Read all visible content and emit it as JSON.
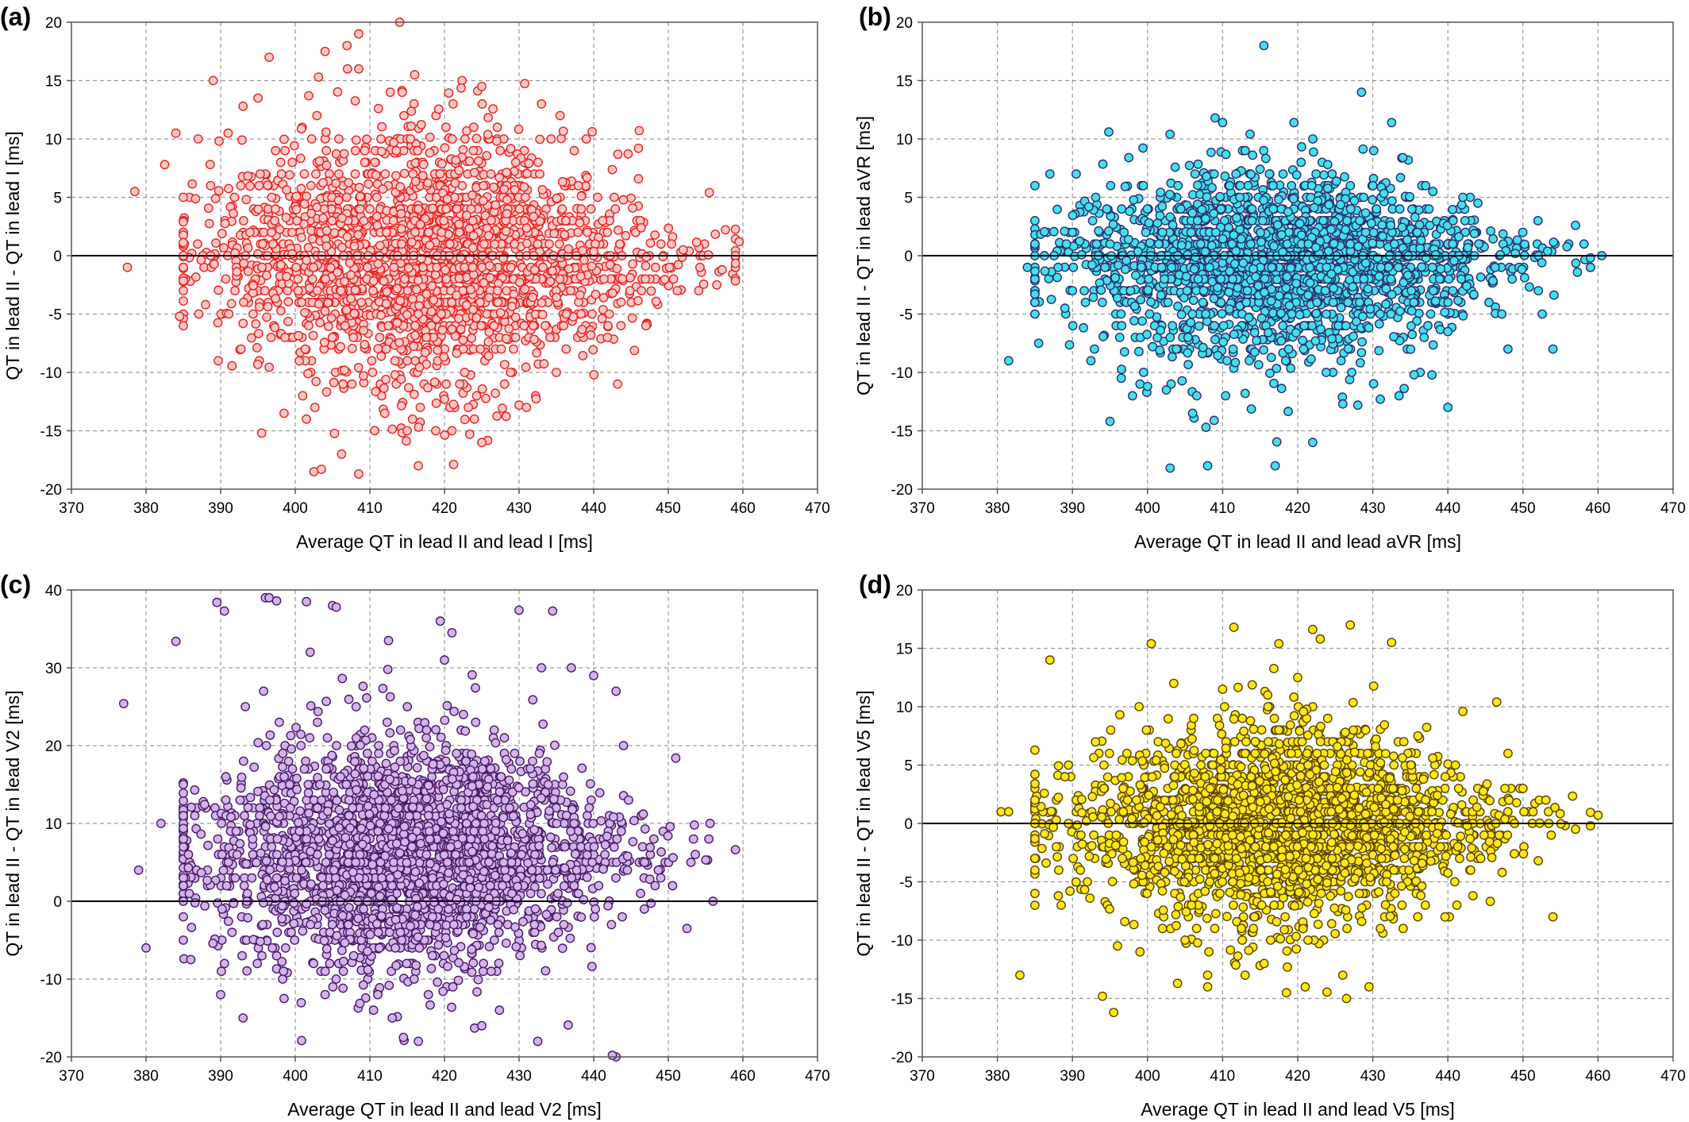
{
  "chart_data": [
    {
      "type": "scatter",
      "panel_label": "(a)",
      "title": "",
      "xlabel": "Average QT in lead II and lead I [ms]",
      "ylabel": "QT in lead II - QT in lead I [ms]",
      "xlim": [
        370,
        470
      ],
      "ylim": [
        -20,
        20
      ],
      "x_ticks": [
        370,
        380,
        390,
        400,
        410,
        420,
        430,
        440,
        450,
        460,
        470
      ],
      "y_ticks": [
        -20,
        -15,
        -10,
        -5,
        0,
        5,
        10,
        15,
        20
      ],
      "grid": true,
      "reference_line_y": 0,
      "marker_fill": "#f9c8c8",
      "marker_edge": "#e8231e",
      "distribution": {
        "n_points": 2200,
        "x_center": 418,
        "x_spread": 15,
        "y_spread_max": 5.8
      },
      "points": [
        [
          377.5,
          -1
        ],
        [
          378.5,
          5.5
        ],
        [
          384,
          10.5
        ],
        [
          389,
          15
        ],
        [
          393,
          12.8
        ],
        [
          395,
          13.5
        ],
        [
          396.5,
          17
        ],
        [
          404,
          17.5
        ],
        [
          407,
          16
        ],
        [
          408.5,
          19
        ],
        [
          414,
          20
        ],
        [
          416,
          15.5
        ],
        [
          425,
          14.5
        ],
        [
          433,
          13
        ],
        [
          435.5,
          12
        ],
        [
          439,
          10
        ],
        [
          446,
          9.2
        ],
        [
          455.5,
          5.4
        ],
        [
          459.5,
          1.2
        ],
        [
          395.5,
          -15.2
        ],
        [
          401.5,
          -14
        ],
        [
          402.5,
          -18.5
        ],
        [
          403.5,
          -18.3
        ],
        [
          408.5,
          -18.7
        ],
        [
          416.5,
          -18
        ],
        [
          421,
          -15
        ],
        [
          425,
          -16
        ],
        [
          430,
          -12.8
        ],
        [
          431,
          -13
        ],
        [
          435,
          -10
        ],
        [
          382.5,
          7.8
        ],
        [
          384.5,
          -5.2
        ],
        [
          398.5,
          -13.5
        ],
        [
          401,
          -12
        ],
        [
          412,
          -13.5
        ],
        [
          415,
          -15
        ],
        [
          420,
          -12.3
        ],
        [
          387,
          10
        ],
        [
          391,
          10.5
        ],
        [
          452,
          0.5
        ],
        [
          456.5,
          -2.5
        ],
        [
          447,
          -6
        ]
      ]
    },
    {
      "type": "scatter",
      "panel_label": "(b)",
      "title": "",
      "xlabel": "Average QT in lead II and lead aVR [ms]",
      "ylabel": "QT in lead II - QT in lead aVR [ms]",
      "xlim": [
        370,
        470
      ],
      "ylim": [
        -20,
        20
      ],
      "x_ticks": [
        370,
        380,
        390,
        400,
        410,
        420,
        430,
        440,
        450,
        460,
        470
      ],
      "y_ticks": [
        -20,
        -15,
        -10,
        -5,
        0,
        5,
        10,
        15,
        20
      ],
      "grid": true,
      "reference_line_y": 0,
      "marker_fill": "#43e0ec",
      "marker_edge": "#2a2e6e",
      "distribution": {
        "n_points": 2200,
        "x_center": 418,
        "x_spread": 14,
        "y_spread_max": 3.6
      },
      "points": [
        [
          381.5,
          -9
        ],
        [
          385,
          -5
        ],
        [
          385.5,
          -7.5
        ],
        [
          387,
          7
        ],
        [
          390.5,
          7
        ],
        [
          395,
          -14.2
        ],
        [
          397.5,
          8.4
        ],
        [
          403,
          10.4
        ],
        [
          403,
          -18.2
        ],
        [
          408,
          -18
        ],
        [
          409,
          11.8
        ],
        [
          410,
          11.4
        ],
        [
          415.5,
          18
        ],
        [
          417,
          -18
        ],
        [
          419.5,
          11.4
        ],
        [
          422,
          -16
        ],
        [
          428.5,
          14
        ],
        [
          432.5,
          11.4
        ],
        [
          434,
          8.4
        ],
        [
          438,
          5.5
        ],
        [
          442,
          5
        ],
        [
          448,
          -8
        ],
        [
          454,
          -8
        ],
        [
          457,
          2.6
        ],
        [
          460.5,
          0
        ],
        [
          399,
          -11
        ],
        [
          400,
          -11.2
        ],
        [
          402.5,
          -11.5
        ],
        [
          406,
          -13.5
        ],
        [
          413,
          -11.8
        ],
        [
          426,
          -12.7
        ],
        [
          428,
          -12.8
        ],
        [
          431,
          -12.3
        ],
        [
          435.5,
          -10.2
        ],
        [
          440,
          -6.5
        ],
        [
          424,
          7.8
        ],
        [
          413,
          9
        ],
        [
          396.5,
          -10.5
        ],
        [
          389,
          -4.5
        ],
        [
          384,
          -1
        ],
        [
          444,
          4.5
        ],
        [
          452,
          3
        ]
      ]
    },
    {
      "type": "scatter",
      "panel_label": "(c)",
      "title": "",
      "xlabel": "Average QT in lead II and lead V2 [ms]",
      "ylabel": "QT in lead II - QT in lead V2 [ms]",
      "xlim": [
        370,
        470
      ],
      "ylim": [
        -20,
        40
      ],
      "x_ticks": [
        370,
        380,
        390,
        400,
        410,
        420,
        430,
        440,
        450,
        460,
        470
      ],
      "y_ticks": [
        -20,
        -10,
        0,
        10,
        20,
        30,
        40
      ],
      "grid": true,
      "reference_line_y": 0,
      "marker_fill": "#d4b3ec",
      "marker_edge": "#4a1a66",
      "distribution": {
        "n_points": 2500,
        "x_center": 415,
        "x_spread": 14,
        "y_center": 6,
        "y_spread_max": 8
      },
      "points": [
        [
          377,
          25.4
        ],
        [
          379,
          4
        ],
        [
          380,
          -6
        ],
        [
          382,
          10
        ],
        [
          384,
          33.4
        ],
        [
          389.5,
          38.4
        ],
        [
          390.5,
          37.3
        ],
        [
          396,
          39
        ],
        [
          396.5,
          39
        ],
        [
          397.5,
          38.6
        ],
        [
          401.5,
          38.5
        ],
        [
          405,
          38
        ],
        [
          405.5,
          37.8
        ],
        [
          412.5,
          33.5
        ],
        [
          421,
          34.5
        ],
        [
          430,
          37.4
        ],
        [
          434.5,
          37.3
        ],
        [
          443,
          27
        ],
        [
          444,
          20
        ],
        [
          451,
          18.4
        ],
        [
          453.5,
          9.8
        ],
        [
          452.5,
          -3.5
        ],
        [
          456,
          0
        ],
        [
          443,
          -20
        ],
        [
          442.5,
          -19.8
        ],
        [
          432.5,
          -18
        ],
        [
          425,
          -16
        ],
        [
          416.5,
          -18
        ],
        [
          414.5,
          -17.5
        ],
        [
          413,
          -15
        ],
        [
          410.5,
          -14
        ],
        [
          404,
          -12
        ],
        [
          398.5,
          -12.5
        ],
        [
          393,
          -15
        ],
        [
          390,
          -12
        ],
        [
          386,
          -7.5
        ],
        [
          385,
          2
        ],
        [
          440,
          29
        ],
        [
          437,
          30
        ],
        [
          433,
          30
        ],
        [
          420,
          31
        ],
        [
          402,
          32
        ]
      ]
    },
    {
      "type": "scatter",
      "panel_label": "(d)",
      "title": "",
      "xlabel": "Average QT in lead II and lead V5 [ms]",
      "ylabel": "QT in lead II - QT in lead V5 [ms]",
      "xlim": [
        370,
        470
      ],
      "ylim": [
        -20,
        20
      ],
      "x_ticks": [
        370,
        380,
        390,
        400,
        410,
        420,
        430,
        440,
        450,
        460,
        470
      ],
      "y_ticks": [
        -20,
        -15,
        -10,
        -5,
        0,
        5,
        10,
        15,
        20
      ],
      "grid": true,
      "reference_line_y": 0,
      "marker_fill": "#ffe817",
      "marker_edge": "#5a4400",
      "distribution": {
        "n_points": 2200,
        "x_center": 418,
        "x_spread": 14,
        "y_spread_max": 4.4
      },
      "points": [
        [
          380.5,
          1
        ],
        [
          381.5,
          1
        ],
        [
          383,
          -13
        ],
        [
          387,
          14
        ],
        [
          388.5,
          -7
        ],
        [
          395.5,
          -16.2
        ],
        [
          394,
          -14.8
        ],
        [
          400.5,
          15.4
        ],
        [
          404,
          -13.7
        ],
        [
          408,
          -14
        ],
        [
          411.5,
          16.8
        ],
        [
          417.5,
          15.4
        ],
        [
          418.5,
          -14.5
        ],
        [
          421,
          -14
        ],
        [
          423,
          15.8
        ],
        [
          426,
          -13
        ],
        [
          427,
          17
        ],
        [
          426.5,
          -15
        ],
        [
          429.5,
          -14
        ],
        [
          432.5,
          15.5
        ],
        [
          442,
          9.6
        ],
        [
          446.5,
          10.4
        ],
        [
          454,
          -8
        ],
        [
          457,
          -0.5
        ],
        [
          460,
          0.7
        ],
        [
          389,
          4
        ],
        [
          385,
          2
        ],
        [
          396,
          -10.5
        ],
        [
          402,
          -9
        ],
        [
          410,
          11.5
        ],
        [
          416,
          11
        ],
        [
          420,
          12.5
        ],
        [
          431,
          -9
        ],
        [
          437,
          -7
        ],
        [
          441,
          5
        ],
        [
          448,
          6
        ],
        [
          450,
          3
        ],
        [
          399,
          -11
        ],
        [
          405,
          -10
        ],
        [
          413,
          -13
        ],
        [
          436,
          7.5
        ],
        [
          424,
          9
        ]
      ]
    }
  ]
}
